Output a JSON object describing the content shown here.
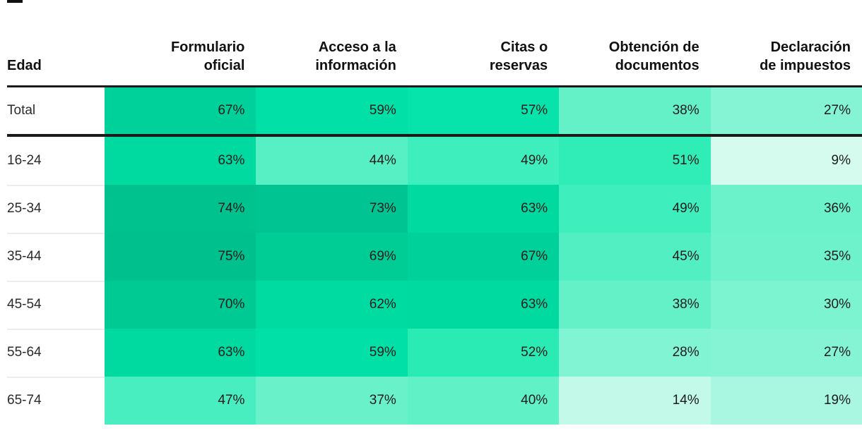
{
  "page": {
    "background": "#ffffff",
    "text_color": "#1a1a1a",
    "accent_high_color": "#00C18D",
    "accent_low_color": "#D5FBEF"
  },
  "table": {
    "corner_header": "Edad",
    "columns": [
      "Formulario\noficial",
      "Acceso a la\ninformación",
      "Citas o\nreservas",
      "Obtención de\ndocumentos",
      "Declaración\nde impuestos"
    ],
    "rows": [
      {
        "label": "Total",
        "values": [
          "67%",
          "59%",
          "57%",
          "38%",
          "27%"
        ],
        "colors": [
          "#00D099",
          "#00E0A7",
          "#06E3AB",
          "#65F1C8",
          "#84F4D4"
        ]
      },
      {
        "label": "16-24",
        "values": [
          "63%",
          "44%",
          "49%",
          "51%",
          "9%"
        ],
        "colors": [
          "#00D9A0",
          "#57F0C4",
          "#3FEEBD",
          "#30ECB7",
          "#D5FBEF"
        ]
      },
      {
        "label": "25-34",
        "values": [
          "74%",
          "73%",
          "63%",
          "49%",
          "36%"
        ],
        "colors": [
          "#00C28E",
          "#00C491",
          "#00D9A0",
          "#3FEEBD",
          "#6BF2CA"
        ]
      },
      {
        "label": "35-44",
        "values": [
          "75%",
          "69%",
          "67%",
          "45%",
          "35%"
        ],
        "colors": [
          "#00C18D",
          "#00CC96",
          "#00D099",
          "#52EFC2",
          "#6DF2CB"
        ]
      },
      {
        "label": "45-54",
        "values": [
          "70%",
          "62%",
          "63%",
          "38%",
          "30%"
        ],
        "colors": [
          "#00CA94",
          "#00DBA2",
          "#00D9A0",
          "#65F1C8",
          "#7CF4D0"
        ]
      },
      {
        "label": "55-64",
        "values": [
          "63%",
          "59%",
          "52%",
          "28%",
          "27%"
        ],
        "colors": [
          "#00D9A0",
          "#00E0A7",
          "#2BEBB5",
          "#81F4D3",
          "#84F4D4"
        ]
      },
      {
        "label": "65-74",
        "values": [
          "47%",
          "37%",
          "40%",
          "14%",
          "19%"
        ],
        "colors": [
          "#49EEC0",
          "#69F2C9",
          "#60F1C6",
          "#C3F9E9",
          "#A9F7E0"
        ]
      }
    ]
  },
  "chart_data": {
    "type": "heatmap",
    "title": "",
    "xlabel": "",
    "ylabel": "Edad",
    "x_categories": [
      "Formulario oficial",
      "Acceso a la información",
      "Citas o reservas",
      "Obtención de documentos",
      "Declaración de impuestos"
    ],
    "y_categories": [
      "Total",
      "16-24",
      "25-34",
      "35-44",
      "45-54",
      "55-64",
      "65-74"
    ],
    "values": [
      [
        67,
        59,
        57,
        38,
        27
      ],
      [
        63,
        44,
        49,
        51,
        9
      ],
      [
        74,
        73,
        63,
        49,
        36
      ],
      [
        75,
        69,
        67,
        45,
        35
      ],
      [
        70,
        62,
        63,
        38,
        30
      ],
      [
        63,
        59,
        52,
        28,
        27
      ],
      [
        47,
        37,
        40,
        14,
        19
      ]
    ],
    "unit": "%",
    "legend": "none",
    "grid": "off",
    "colormap": {
      "low_value_color": "#D5FBEF",
      "high_value_color": "#00C18D"
    }
  }
}
